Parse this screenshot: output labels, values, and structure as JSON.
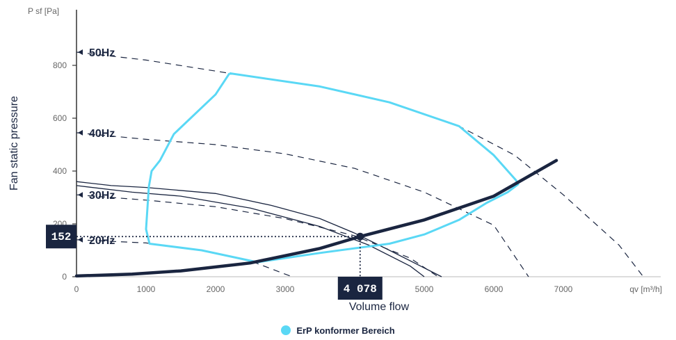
{
  "chart_data": {
    "type": "line",
    "y_unit_label": "P sf [Pa]",
    "x_unit_label": "qv [m³/h]",
    "ylabel": "Fan static pressure",
    "xlabel": "Volume flow",
    "xlim": [
      0,
      8400
    ],
    "ylim": [
      0,
      1000
    ],
    "x_ticks": [
      0,
      1000,
      2000,
      3000,
      4000,
      5000,
      6000,
      7000
    ],
    "x_tick_labels": [
      "0",
      "1000",
      "2000",
      "3000",
      "4000",
      "5000",
      "6000",
      "7000"
    ],
    "y_ticks": [
      0,
      200,
      400,
      600,
      800
    ],
    "speed_curves": [
      {
        "name": "50Hz",
        "label_y": 850,
        "points": [
          [
            0,
            850
          ],
          [
            1000,
            820
          ],
          [
            2200,
            770
          ],
          [
            3500,
            720
          ],
          [
            4500,
            660
          ],
          [
            5500,
            570
          ],
          [
            6300,
            460
          ],
          [
            7000,
            310
          ],
          [
            7800,
            120
          ],
          [
            8150,
            0
          ]
        ]
      },
      {
        "name": "40Hz",
        "label_y": 545,
        "points": [
          [
            0,
            545
          ],
          [
            1000,
            520
          ],
          [
            2000,
            500
          ],
          [
            3000,
            465
          ],
          [
            4000,
            410
          ],
          [
            5000,
            320
          ],
          [
            6000,
            195
          ],
          [
            6500,
            0
          ]
        ]
      },
      {
        "name": "30Hz",
        "label_y": 310,
        "points": [
          [
            0,
            310
          ],
          [
            1000,
            290
          ],
          [
            2000,
            265
          ],
          [
            3000,
            220
          ],
          [
            4000,
            155
          ],
          [
            4800,
            70
          ],
          [
            5200,
            0
          ]
        ]
      },
      {
        "name": "20Hz",
        "label_y": 140,
        "points": [
          [
            0,
            140
          ],
          [
            1000,
            128
          ],
          [
            1800,
            100
          ],
          [
            2500,
            60
          ],
          [
            3100,
            0
          ]
        ]
      }
    ],
    "system_curves": [
      {
        "points": [
          [
            0,
            360
          ],
          [
            500,
            345
          ],
          [
            1000,
            338
          ],
          [
            2000,
            315
          ],
          [
            2800,
            270
          ],
          [
            3500,
            220
          ],
          [
            4000,
            165
          ],
          [
            4500,
            100
          ],
          [
            5250,
            0
          ]
        ]
      },
      {
        "points": [
          [
            0,
            345
          ],
          [
            800,
            320
          ],
          [
            1500,
            305
          ],
          [
            2500,
            260
          ],
          [
            3500,
            190
          ],
          [
            4200,
            120
          ],
          [
            4800,
            40
          ],
          [
            5000,
            0
          ]
        ]
      }
    ],
    "operating_curve": {
      "points": [
        [
          0,
          3
        ],
        [
          800,
          10
        ],
        [
          1500,
          22
        ],
        [
          2500,
          52
        ],
        [
          3500,
          107
        ],
        [
          4078,
          152
        ],
        [
          5000,
          215
        ],
        [
          6000,
          305
        ],
        [
          6900,
          440
        ]
      ]
    },
    "erp_region": {
      "name": "ErP konformer Bereich",
      "color": "#5ad8f5",
      "points": [
        [
          2200,
          770
        ],
        [
          2000,
          690
        ],
        [
          1400,
          540
        ],
        [
          1200,
          440
        ],
        [
          1080,
          400
        ],
        [
          1040,
          340
        ],
        [
          1000,
          180
        ],
        [
          1050,
          125
        ],
        [
          1800,
          100
        ],
        [
          2600,
          55
        ],
        [
          3500,
          90
        ],
        [
          4500,
          125
        ],
        [
          5000,
          160
        ],
        [
          5500,
          215
        ],
        [
          5900,
          280
        ],
        [
          6200,
          320
        ],
        [
          6350,
          350
        ],
        [
          6320,
          365
        ],
        [
          6000,
          460
        ],
        [
          5500,
          570
        ],
        [
          4500,
          660
        ],
        [
          3500,
          720
        ],
        [
          2200,
          770
        ]
      ]
    },
    "operating_point": {
      "x": 4078,
      "y": 152,
      "x_label": "4 078",
      "y_label": "152"
    },
    "colors": {
      "dark": "#1a2540",
      "erp": "#5ad8f5",
      "axis": "#333333"
    }
  }
}
